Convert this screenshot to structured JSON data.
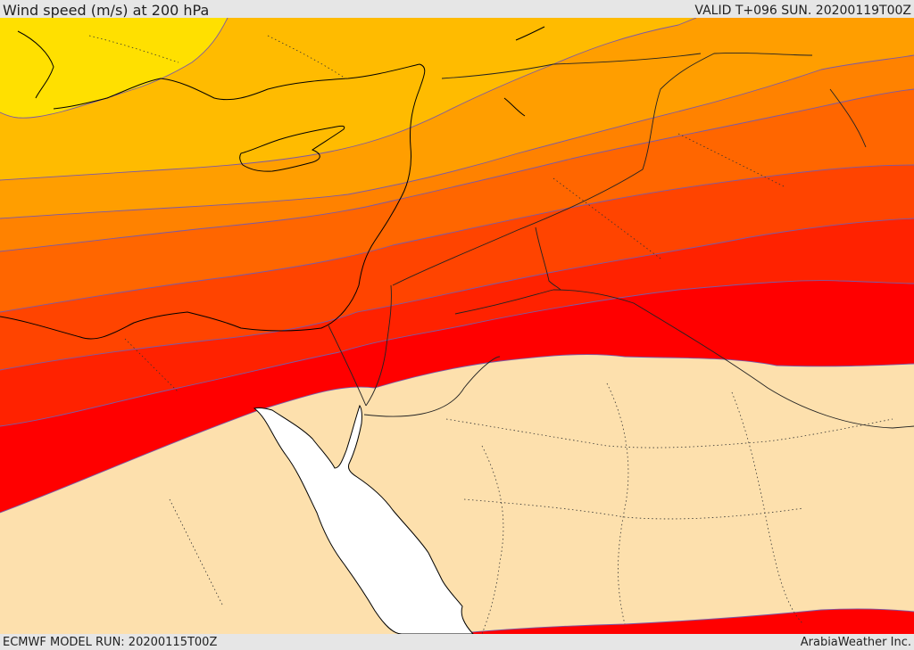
{
  "header": {
    "title": "Wind speed (m/s) at 200 hPa",
    "valid": "VALID T+096 SUN. 20200119T00Z"
  },
  "footer": {
    "model_run": "ECMWF MODEL RUN: 20200115T00Z",
    "credit": "ArabiaWeather Inc."
  },
  "map": {
    "field": "wind speed at 200 hPa",
    "colors": {
      "band_1": "#ffe000",
      "band_2": "#ffbb00",
      "band_3": "#ff9e00",
      "band_4": "#ff8200",
      "band_5": "#ff6600",
      "band_6": "#ff4400",
      "band_7": "#ff2200",
      "band_8": "#ff0000",
      "calm": "#fde0ad",
      "sea": "#ffffff",
      "contour": "#7b5aa6"
    }
  }
}
